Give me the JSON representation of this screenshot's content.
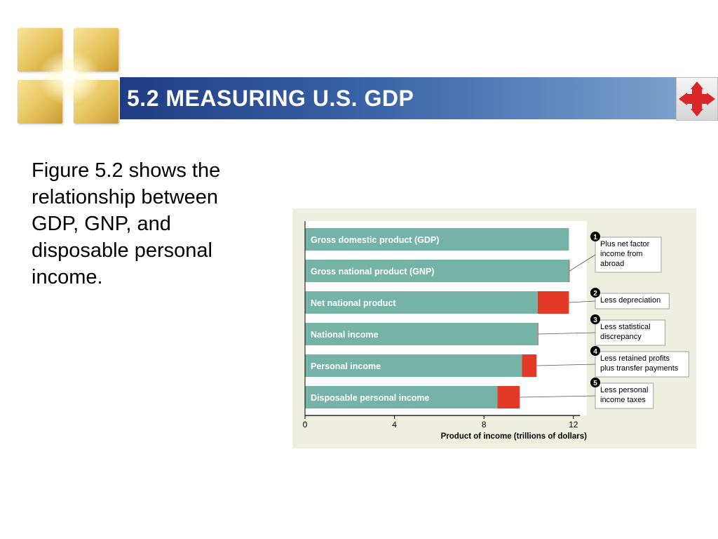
{
  "slide": {
    "title": "5.2 MEASURING U.S. GDP",
    "body": "Figure 5.2 shows the relationship between GDP, GNP, and disposable personal income.",
    "nav_icon": "four-way-arrows-icon",
    "logo_icon": "gold-squares-logo"
  },
  "colors": {
    "bar": "#74b3a5",
    "deduction": "#e23a26",
    "annotation_line": "#555555",
    "title_start": "#1f3c84",
    "title_end": "#7aa0cc"
  },
  "chart_data": {
    "type": "bar",
    "orientation": "horizontal",
    "xlabel": "Product of income (trillions of dollars)",
    "ylabel": "",
    "xlim": [
      0,
      12.3
    ],
    "xticks": [
      0,
      4,
      8,
      12
    ],
    "categories": [
      "Gross domestic product (GDP)",
      "Gross national product (GNP)",
      "Net national product",
      "National income",
      "Personal income",
      "Disposable personal income"
    ],
    "series": [
      {
        "values": [
          11.8,
          11.8,
          10.4,
          10.4,
          9.7,
          8.6
        ]
      },
      {
        "values": [
          0,
          0.03,
          1.4,
          0.03,
          0.65,
          1.0
        ]
      }
    ],
    "annotations": [
      {
        "number": "1",
        "lines": [
          "Plus net factor",
          "income from",
          "abroad"
        ],
        "row": 1
      },
      {
        "number": "2",
        "lines": [
          "Less depreciation"
        ],
        "row": 2
      },
      {
        "number": "3",
        "lines": [
          "Less statistical",
          "discrepancy"
        ],
        "row": 3
      },
      {
        "number": "4",
        "lines": [
          "Less retained profits",
          "plus transfer payments"
        ],
        "row": 4
      },
      {
        "number": "5",
        "lines": [
          "Less personal",
          "income taxes"
        ],
        "row": 5
      }
    ]
  }
}
